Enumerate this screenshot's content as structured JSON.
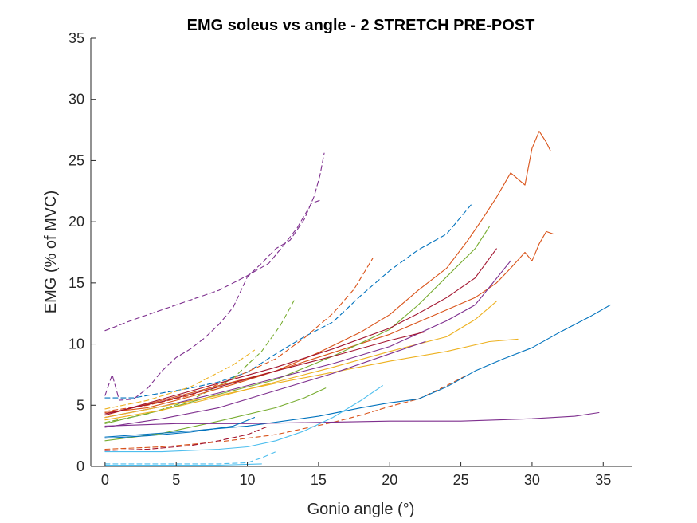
{
  "chart_data": {
    "type": "line",
    "title": "EMG soleus vs angle - 2 STRETCH PRE-POST",
    "xlabel": "Gonio angle (°)",
    "ylabel": "EMG (% of MVC)",
    "xlim": [
      -1,
      37
    ],
    "ylim": [
      0,
      35
    ],
    "xticks": [
      0,
      5,
      10,
      15,
      20,
      25,
      30,
      35
    ],
    "yticks": [
      0,
      5,
      10,
      15,
      20,
      25,
      30,
      35
    ],
    "grid": false,
    "series": [
      {
        "color": "#7E2F8E",
        "style": "dashed",
        "x": [
          0,
          2,
          4,
          6,
          8,
          10,
          11.5,
          12.5,
          13.5,
          14.5,
          15.2
        ],
        "y": [
          11.1,
          12,
          12.8,
          13.6,
          14.4,
          15.6,
          16.6,
          18,
          19.5,
          21.5,
          21.8
        ]
      },
      {
        "color": "#7E2F8E",
        "style": "dashed",
        "x": [
          0,
          0.5,
          1,
          2,
          3,
          4,
          5,
          6,
          7,
          8,
          9,
          10,
          11,
          12,
          13,
          14,
          14.7,
          15.1,
          15.4
        ],
        "y": [
          5.8,
          7.5,
          5.4,
          5.5,
          6.4,
          7.8,
          8.9,
          9.6,
          10.5,
          11.6,
          13,
          15.5,
          16.6,
          17.8,
          18.5,
          20.2,
          22.1,
          23.8,
          25.6
        ]
      },
      {
        "color": "#0072BD",
        "style": "dashed",
        "x": [
          0,
          2,
          4,
          6,
          8,
          10,
          12,
          14,
          16,
          18,
          20,
          22,
          24,
          25.8
        ],
        "y": [
          5.6,
          5.6,
          6,
          6.4,
          6.9,
          7.7,
          9.2,
          10.6,
          11.8,
          14,
          16,
          17.7,
          19,
          21.5
        ]
      },
      {
        "color": "#D95319",
        "style": "dashed",
        "x": [
          0,
          3,
          6,
          9,
          12,
          14,
          16,
          17.5,
          18.8
        ],
        "y": [
          4.5,
          5,
          5.8,
          7.2,
          8.8,
          10.5,
          12.5,
          14.5,
          17
        ]
      },
      {
        "color": "#77AC30",
        "style": "dashed",
        "x": [
          0,
          3,
          6,
          9,
          11,
          12.3,
          13.3
        ],
        "y": [
          3.6,
          4.3,
          5.4,
          7.2,
          9.4,
          11.5,
          13.6
        ]
      },
      {
        "color": "#D95319",
        "style": "dashed",
        "x": [
          0,
          4,
          8,
          12,
          16,
          18,
          20,
          22,
          24,
          25.5
        ],
        "y": [
          1.4,
          1.6,
          2,
          2.6,
          3.6,
          4.2,
          4.9,
          5.5,
          6.6,
          7.5
        ]
      },
      {
        "color": "#A2142F",
        "style": "dashed",
        "x": [
          0,
          3,
          6,
          8,
          10,
          11.5
        ],
        "y": [
          1.3,
          1.4,
          1.7,
          2.1,
          2.6,
          3.3
        ]
      },
      {
        "color": "#4DBEEE",
        "style": "dashed",
        "x": [
          0,
          4,
          8,
          10,
          11,
          12
        ],
        "y": [
          0.2,
          0.2,
          0.2,
          0.3,
          0.7,
          1.2
        ]
      },
      {
        "color": "#EDB120",
        "style": "dashed",
        "x": [
          0,
          3,
          6,
          9,
          10.5
        ],
        "y": [
          4.7,
          5.4,
          6.5,
          8.3,
          9.5
        ]
      },
      {
        "color": "#D95319",
        "style": "solid",
        "x": [
          0,
          3,
          6,
          9,
          12,
          15,
          18,
          20,
          22,
          24,
          25.5,
          26.5,
          27.5,
          28.5,
          29.5,
          30,
          30.5,
          31,
          31.3
        ],
        "y": [
          4.4,
          4.8,
          5.7,
          6.7,
          7.8,
          9.3,
          11,
          12.4,
          14.4,
          16.2,
          18.5,
          20.2,
          22,
          24,
          23,
          26,
          27.4,
          26.5,
          25.8
        ]
      },
      {
        "color": "#D95319",
        "style": "solid",
        "x": [
          0,
          4,
          8,
          12,
          16,
          20,
          22,
          24,
          26,
          27.5,
          28.5,
          29.5,
          30,
          30.5,
          31,
          31.5
        ],
        "y": [
          4.2,
          5.4,
          6.6,
          7.8,
          9.3,
          10.8,
          11.8,
          12.8,
          13.8,
          15,
          16.2,
          17.5,
          16.8,
          18.2,
          19.2,
          19
        ]
      },
      {
        "color": "#77AC30",
        "style": "solid",
        "x": [
          0,
          4,
          8,
          12,
          16,
          20,
          22,
          24,
          26,
          27
        ],
        "y": [
          3.5,
          4.6,
          5.9,
          7.1,
          9,
          11.2,
          13.2,
          15.5,
          17.8,
          19.6
        ]
      },
      {
        "color": "#A2142F",
        "style": "solid",
        "x": [
          0,
          4,
          8,
          12,
          16,
          20,
          22,
          24,
          26,
          27.5
        ],
        "y": [
          4.2,
          5.5,
          6.8,
          8.1,
          9.6,
          11.3,
          12.5,
          13.8,
          15.4,
          17.8
        ]
      },
      {
        "color": "#7E2F8E",
        "style": "solid",
        "x": [
          0,
          4,
          8,
          12,
          16,
          20,
          24,
          26,
          28.5
        ],
        "y": [
          4,
          4.9,
          6,
          7.2,
          8.4,
          9.8,
          11.9,
          13.2,
          16.8
        ]
      },
      {
        "color": "#EDB120",
        "style": "solid",
        "x": [
          0,
          4,
          8,
          12,
          16,
          20,
          24,
          26,
          27.5
        ],
        "y": [
          3.8,
          4.6,
          5.7,
          6.9,
          8.1,
          9.4,
          10.6,
          12,
          13.5
        ]
      },
      {
        "color": "#EDB120",
        "style": "solid",
        "x": [
          0,
          4,
          8,
          12,
          16,
          20,
          24,
          27,
          29
        ],
        "y": [
          4,
          4.9,
          5.8,
          6.8,
          7.7,
          8.6,
          9.4,
          10.2,
          10.4
        ]
      },
      {
        "color": "#7E2F8E",
        "style": "solid",
        "x": [
          0,
          4,
          8,
          12,
          16,
          20,
          22.5
        ],
        "y": [
          3.2,
          3.9,
          4.8,
          6.2,
          7.6,
          9.2,
          10.2
        ]
      },
      {
        "color": "#A2142F",
        "style": "solid",
        "x": [
          0,
          4,
          8,
          12,
          16,
          20,
          22.5
        ],
        "y": [
          4.3,
          5.3,
          6.5,
          7.8,
          9,
          10.3,
          11
        ]
      },
      {
        "color": "#77AC30",
        "style": "solid",
        "x": [
          0,
          4,
          8,
          12,
          14,
          15.5
        ],
        "y": [
          2.1,
          2.7,
          3.7,
          4.8,
          5.6,
          6.4
        ]
      },
      {
        "color": "#0072BD",
        "style": "solid",
        "x": [
          0,
          5,
          10,
          15,
          18,
          20,
          22,
          24,
          26,
          28,
          30,
          32,
          34,
          35.5
        ],
        "y": [
          2.4,
          2.8,
          3.3,
          4.1,
          4.8,
          5.2,
          5.5,
          6.5,
          7.8,
          8.8,
          9.7,
          11,
          12.2,
          13.2
        ]
      },
      {
        "color": "#7E2F8E",
        "style": "solid",
        "x": [
          0,
          5,
          10,
          15,
          20,
          25,
          30,
          33,
          34.7
        ],
        "y": [
          3.3,
          3.5,
          3.5,
          3.6,
          3.7,
          3.7,
          3.9,
          4.1,
          4.4
        ]
      },
      {
        "color": "#4DBEEE",
        "style": "solid",
        "x": [
          0,
          4,
          8,
          10,
          12,
          14,
          16,
          18,
          19.5
        ],
        "y": [
          1.2,
          1.2,
          1.4,
          1.6,
          2.1,
          2.9,
          4,
          5.4,
          6.6
        ]
      },
      {
        "color": "#0072BD",
        "style": "solid",
        "x": [
          0,
          3,
          6,
          9,
          10.5
        ],
        "y": [
          2.3,
          2.5,
          2.8,
          3.3,
          4
        ]
      },
      {
        "color": "#4DBEEE",
        "style": "solid",
        "x": [
          0,
          4,
          8,
          11
        ],
        "y": [
          0.1,
          0.1,
          0.1,
          0.2
        ]
      }
    ]
  }
}
